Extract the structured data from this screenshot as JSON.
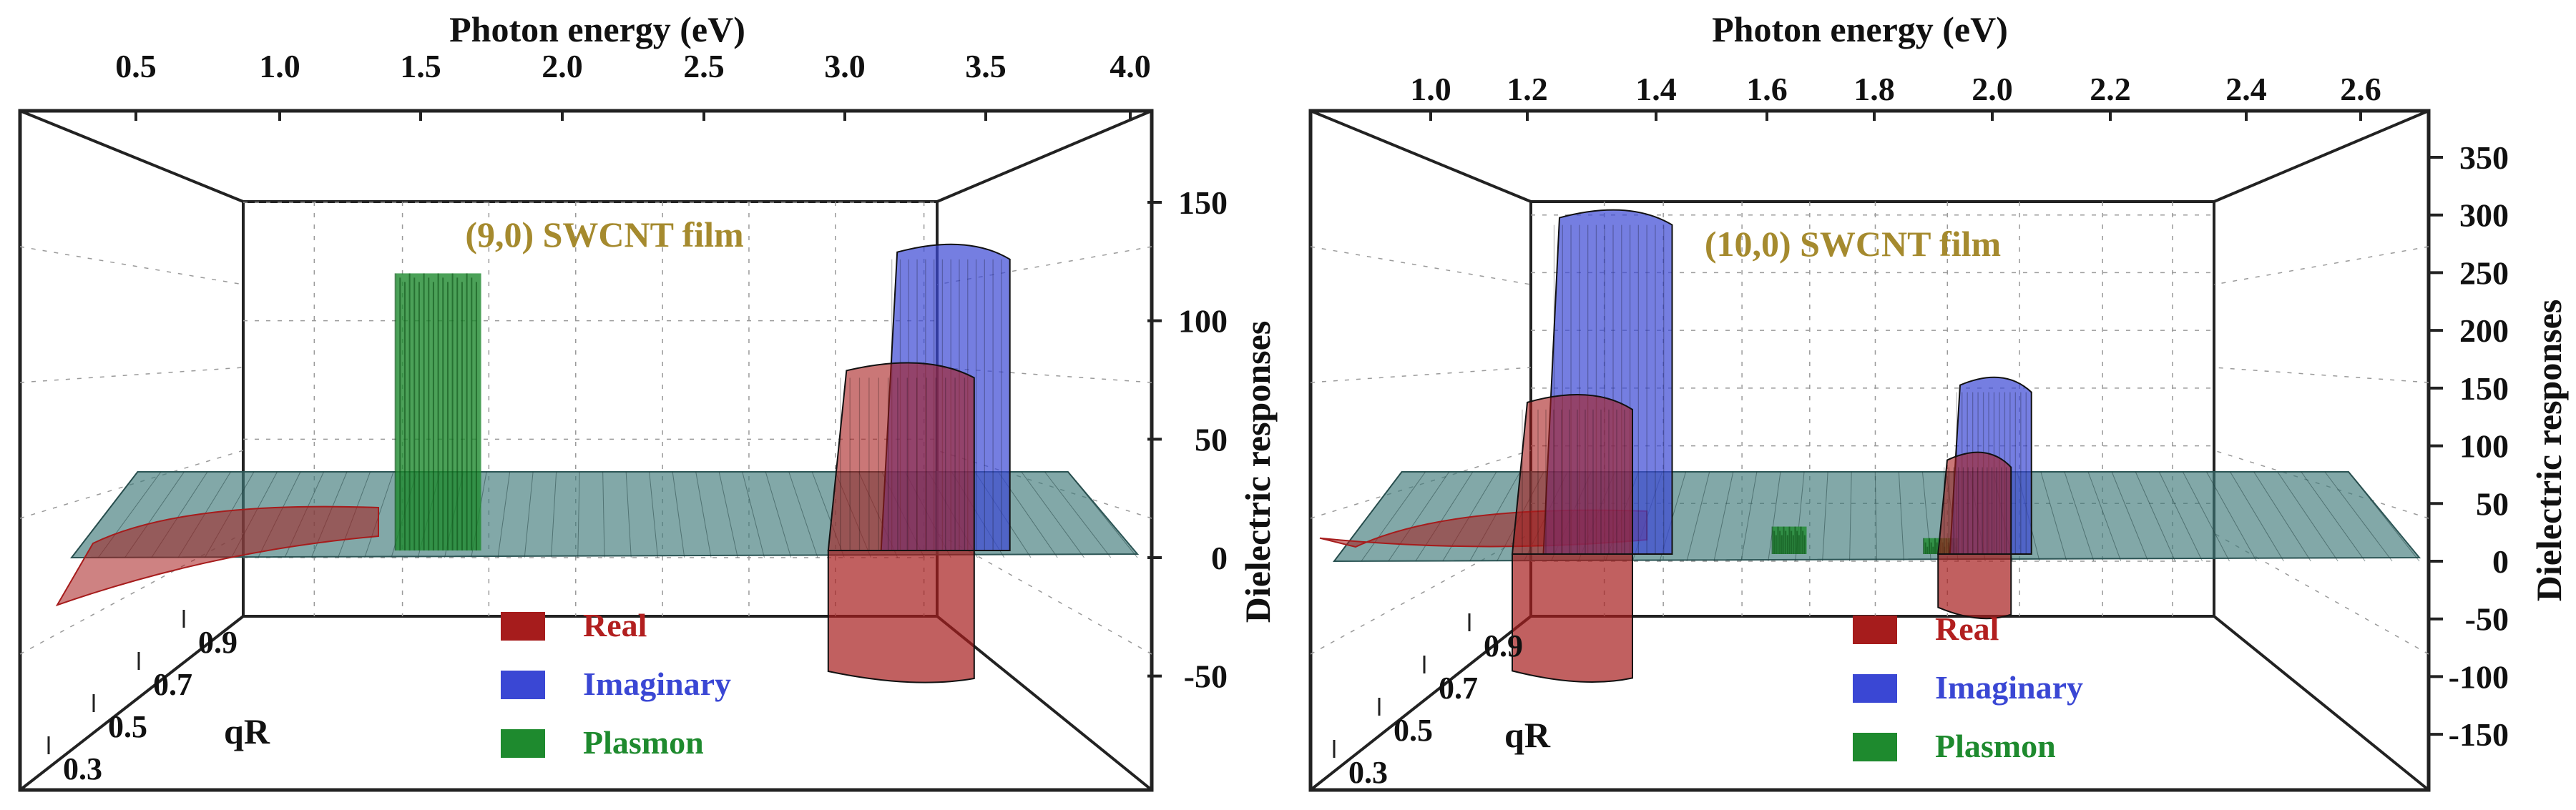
{
  "chart_data": [
    {
      "type": "surface3d",
      "panel_title": "(9,0) SWCNT film",
      "xlabel": "Photon energy  (eV)",
      "zlabel": "Dielectric responses",
      "depth_label": "qR",
      "x_ticks": [
        "0.5",
        "1.0",
        "1.5",
        "2.0",
        "2.5",
        "3.0",
        "3.5",
        "4.0"
      ],
      "x_tick_values": [
        0.5,
        1.0,
        1.5,
        2.0,
        2.5,
        3.0,
        3.5,
        4.0
      ],
      "xlim": [
        0.2,
        4.05
      ],
      "z_ticks": [
        "150",
        "100",
        "50",
        "0",
        "-50"
      ],
      "z_tick_values": [
        150,
        100,
        50,
        0,
        -50
      ],
      "zlim": [
        -75,
        175
      ],
      "qR_ticks": [
        "0.3",
        "0.5",
        "0.7",
        "0.9"
      ],
      "legend": [
        {
          "label": "Real",
          "color": "#a61c1c",
          "label_color": "#b21f1f"
        },
        {
          "label": "Imaginary",
          "color": "#3a47d4",
          "label_color": "#3a47d4"
        },
        {
          "label": "Plasmon",
          "color": "#1e8a2e",
          "label_color": "#1e8a2e"
        }
      ],
      "series": [
        {
          "name": "Real",
          "peaks": [
            {
              "energy": 3.2,
              "max": 85,
              "min": -48
            }
          ],
          "low_energy_value": -20
        },
        {
          "name": "Imaginary",
          "peaks": [
            {
              "energy": 3.3,
              "max": 135
            }
          ]
        },
        {
          "name": "Plasmon",
          "peaks": [
            {
              "energy": 1.6,
              "max": 120
            }
          ]
        }
      ]
    },
    {
      "type": "surface3d",
      "panel_title": "(10,0) SWCNT film",
      "xlabel": "Photon energy  (eV)",
      "zlabel": "Dielectric responses",
      "depth_label": "qR",
      "x_ticks": [
        "1.0",
        "1.2",
        "1.4",
        "1.6",
        "1.8",
        "2.0",
        "2.2",
        "2.4",
        "2.6"
      ],
      "x_tick_values": [
        1.0,
        1.2,
        1.4,
        1.6,
        1.8,
        2.0,
        2.2,
        2.4,
        2.6
      ],
      "xlim": [
        0.93,
        2.72
      ],
      "z_ticks": [
        "350",
        "300",
        "250",
        "200",
        "150",
        "100",
        "50",
        "0",
        "-50",
        "-100",
        "-150"
      ],
      "z_tick_values": [
        350,
        300,
        250,
        200,
        150,
        100,
        50,
        0,
        -50,
        -100,
        -150
      ],
      "zlim": [
        -170,
        375
      ],
      "qR_ticks": [
        "0.3",
        "0.5",
        "0.7",
        "0.9"
      ],
      "legend": [
        {
          "label": "Real",
          "color": "#a61c1c",
          "label_color": "#b21f1f"
        },
        {
          "label": "Imaginary",
          "color": "#3a47d4",
          "label_color": "#3a47d4"
        },
        {
          "label": "Plasmon",
          "color": "#1e8a2e",
          "label_color": "#1e8a2e"
        }
      ],
      "series": [
        {
          "name": "Real",
          "peaks": [
            {
              "energy": 1.27,
              "max": 150,
              "min": -95
            },
            {
              "energy": 1.97,
              "max": 100,
              "min": -40
            }
          ],
          "low_energy_value": 20
        },
        {
          "name": "Imaginary",
          "peaks": [
            {
              "energy": 1.3,
              "max": 310
            },
            {
              "energy": 1.98,
              "max": 165
            }
          ]
        },
        {
          "name": "Plasmon",
          "peaks": [
            {
              "energy": 1.65,
              "max": 30
            },
            {
              "energy": 1.92,
              "max": 20
            }
          ]
        }
      ]
    }
  ]
}
